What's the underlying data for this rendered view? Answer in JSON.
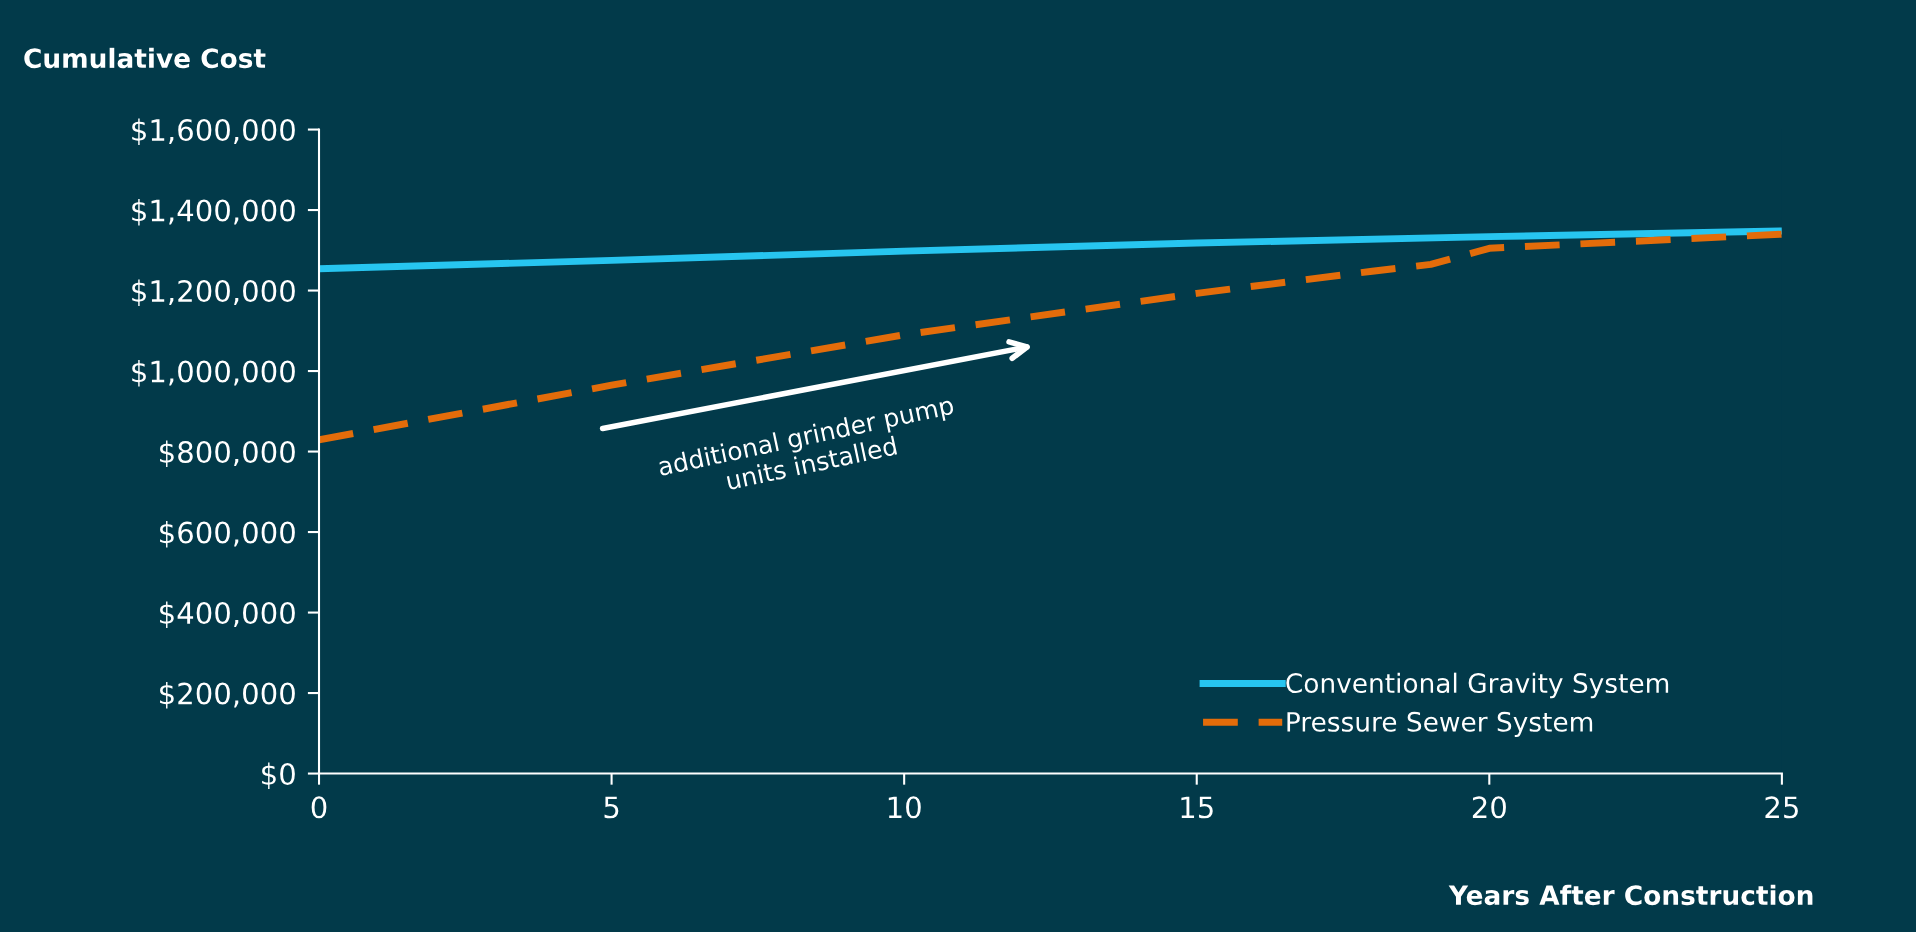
{
  "chart_data": {
    "type": "line",
    "ylabel": "Cumulative Cost",
    "xlabel": "Years After Construction",
    "x": [
      0,
      5,
      10,
      15,
      18,
      19,
      20,
      25
    ],
    "series": [
      {
        "name": "Conventional Gravity System",
        "color": "#27c5f0",
        "line_style": "solid",
        "x": [
          0,
          5,
          10,
          15,
          20,
          25
        ],
        "values": [
          1254000,
          1275000,
          1298000,
          1318000,
          1334000,
          1348000
        ]
      },
      {
        "name": "Pressure Sewer System",
        "color": "#e36c0a",
        "line_style": "dashed",
        "values": [
          829000,
          965000,
          1090000,
          1193000,
          1248000,
          1265000,
          1305000,
          1340000
        ]
      }
    ],
    "xlim": [
      0,
      25
    ],
    "xticks": [
      0,
      5,
      10,
      15,
      20,
      25
    ],
    "ylim": [
      0,
      1600000
    ],
    "yticks": [
      {
        "value": 0,
        "label": "$0"
      },
      {
        "value": 200000,
        "label": "$200,000"
      },
      {
        "value": 400000,
        "label": "$400,000"
      },
      {
        "value": 600000,
        "label": "$600,000"
      },
      {
        "value": 800000,
        "label": "$800,000"
      },
      {
        "value": 1000000,
        "label": "$1,000,000"
      },
      {
        "value": 1200000,
        "label": "$1,200,000"
      },
      {
        "value": 1400000,
        "label": "$1,400,000"
      },
      {
        "value": 1600000,
        "label": "$1,600,000"
      }
    ],
    "annotations": [
      "additional grinder pump units installed"
    ],
    "legend": "bottom right",
    "grid": false,
    "marker": "none"
  }
}
